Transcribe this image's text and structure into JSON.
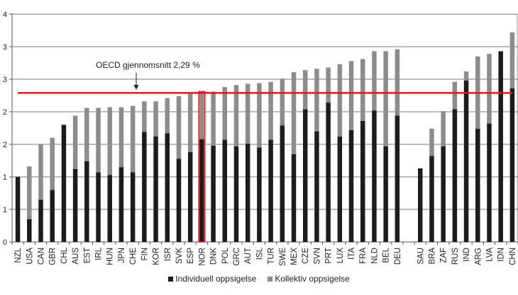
{
  "chart_data": {
    "type": "bar",
    "stacked": true,
    "categories": [
      "NZL",
      "USA",
      "CAN",
      "GBR",
      "CHL",
      "AUS",
      "EST",
      "IRL",
      "HUN",
      "JPN",
      "CHE",
      "FIN",
      "KOR",
      "ISR",
      "SVK",
      "ESP",
      "NOR",
      "DNK",
      "POL",
      "GRC",
      "AUT",
      "ISL",
      "TUR",
      "SWE",
      "MEX",
      "CZE",
      "SVN",
      "PRT",
      "LUX",
      "ITA",
      "FRA",
      "NLD",
      "BEL",
      "DEU",
      "SAU",
      "BRA",
      "ZAF",
      "RUS",
      "IND",
      "ARG",
      "LVA",
      "IDN",
      "CHN"
    ],
    "series": [
      {
        "name": "Individuell oppsigelse",
        "color": "#1c1c1c",
        "values": [
          1.0,
          0.35,
          0.65,
          0.8,
          1.8,
          1.12,
          1.24,
          1.07,
          1.03,
          1.15,
          1.07,
          1.69,
          1.62,
          1.67,
          1.28,
          1.38,
          1.58,
          1.48,
          1.57,
          1.47,
          1.51,
          1.45,
          1.57,
          1.79,
          1.35,
          2.04,
          1.7,
          2.14,
          1.62,
          1.72,
          1.86,
          2.02,
          1.47,
          1.94,
          1.13,
          1.32,
          1.47,
          2.04,
          2.48,
          1.74,
          1.82,
          2.93,
          2.36
        ]
      },
      {
        "name": "Kollektiv oppsigelse",
        "color": "#8c8c8c",
        "values": [
          0.0,
          0.81,
          0.85,
          0.8,
          0.0,
          0.82,
          0.82,
          0.99,
          1.04,
          0.92,
          1.02,
          0.47,
          0.54,
          0.54,
          0.96,
          0.9,
          0.72,
          0.83,
          0.81,
          0.94,
          0.92,
          0.99,
          0.89,
          0.72,
          1.26,
          0.6,
          0.96,
          0.54,
          1.11,
          1.06,
          0.95,
          0.91,
          1.46,
          1.02,
          0.0,
          0.42,
          0.54,
          0.42,
          0.14,
          1.11,
          1.07,
          0.0,
          0.86
        ]
      }
    ],
    "highlight_category": "NOR",
    "highlight_color": "#e8141c",
    "reference_line": {
      "value": 2.29,
      "label": "OECD gjennomsnitt 2,29 %",
      "color": "#e8141c"
    },
    "yticks": [
      0,
      0.5,
      1,
      1.5,
      2,
      2.5,
      3,
      3.5
    ],
    "ytick_labels": [
      "0",
      "1",
      "1",
      "2",
      "2",
      "3",
      "3",
      "4"
    ],
    "ylim": [
      0,
      3.5
    ],
    "grid": true,
    "legend_position": "bottom"
  }
}
